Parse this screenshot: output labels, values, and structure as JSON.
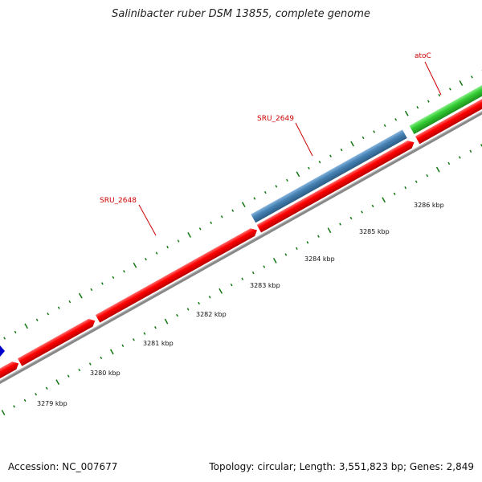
{
  "title": "Salinibacter ruber DSM 13855, complete genome",
  "footer": {
    "accession": "Accession: NC_007677",
    "summary": "Topology: circular; Length: 3,551,823 bp; Genes: 2,849"
  },
  "genes": [
    {
      "name": "SRU_2648",
      "color": "#ff0000",
      "strand": "+",
      "start_kbp": 3280.55,
      "end_kbp": 3283.6
    },
    {
      "name": "SRU_2649",
      "color": "#4682b4",
      "strand": "+",
      "start_kbp": 3283.6,
      "end_kbp": 3286.2
    },
    {
      "name": "atoC",
      "color": "#33cc33",
      "strand": "+",
      "start_kbp": 3286.25,
      "end_kbp": 3287.9
    }
  ],
  "cds_track": {
    "color": "#ff0000"
  },
  "kbp_labels": [
    "3279 kbp",
    "3280 kbp",
    "3281 kbp",
    "3282 kbp",
    "3283 kbp",
    "3284 kbp",
    "3285 kbp",
    "3286 kbp"
  ],
  "colors": {
    "backbone": "#888888",
    "tick": "#117711",
    "label": "#cc0000",
    "blue_feature": "#0000cc"
  }
}
